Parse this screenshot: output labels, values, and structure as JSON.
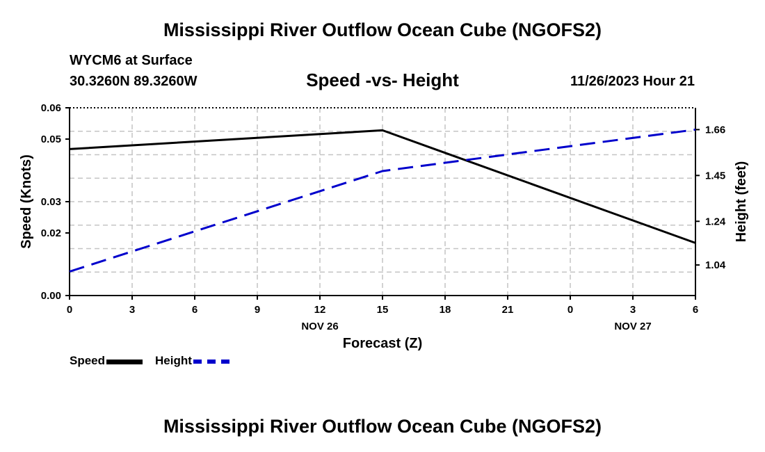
{
  "header": {
    "main_title": "Mississippi River Outflow Ocean Cube (NGOFS2)",
    "station": "WYCM6 at Surface",
    "coords": "30.3260N  89.3260W",
    "subtitle": "Speed -vs- Height",
    "timestamp": "11/26/2023 Hour 21"
  },
  "footer": {
    "main_title": "Mississippi River Outflow Ocean Cube (NGOFS2)"
  },
  "legend": {
    "speed_label": "Speed",
    "height_label": "Height"
  },
  "chart_data": {
    "type": "line",
    "title": "Speed -vs- Height",
    "xlabel": "Forecast (Z)",
    "ylabel": "Speed (Knots)",
    "y2label": "Height (feet)",
    "x_ticks": [
      "0",
      "3",
      "6",
      "9",
      "12",
      "15",
      "18",
      "21",
      "0",
      "3",
      "6"
    ],
    "date_labels": [
      {
        "label": "NOV 26",
        "at_tick": 4
      },
      {
        "label": "NOV 27",
        "at_tick": 9
      }
    ],
    "xlim": [
      0,
      30
    ],
    "ylim": [
      0,
      0.06
    ],
    "y_ticks": [
      0.0,
      0.02,
      0.03,
      0.05,
      0.06
    ],
    "y_tick_labels": [
      "0.00",
      "0.02",
      "0.03",
      "0.05",
      "0.06"
    ],
    "y2lim": [
      0.9,
      1.76
    ],
    "y2_ticks": [
      1.04,
      1.24,
      1.45,
      1.66
    ],
    "y2_tick_labels": [
      "1.04",
      "1.24",
      "1.45",
      "1.66"
    ],
    "grid": true,
    "series": [
      {
        "name": "Speed",
        "axis": "left",
        "color": "#000000",
        "style": "solid",
        "x": [
          0,
          15,
          30
        ],
        "values": [
          0.0468,
          0.0528,
          0.0168
        ]
      },
      {
        "name": "Height",
        "axis": "right",
        "color": "#0000cc",
        "style": "dashed",
        "x": [
          0,
          15,
          30
        ],
        "values": [
          1.01,
          1.47,
          1.66
        ]
      }
    ]
  }
}
